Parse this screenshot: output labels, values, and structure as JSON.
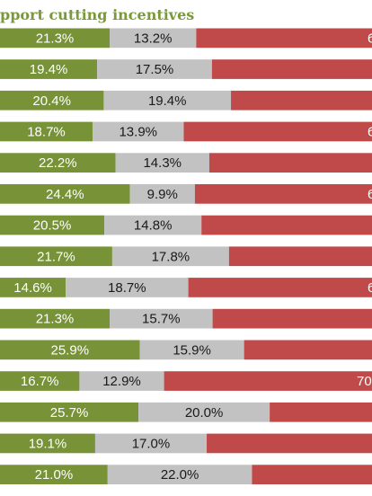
{
  "title": "pport cutting incentives",
  "colors": {
    "support": "#779237",
    "neutral": "#c2c2c2",
    "oppose": "#c04a4a",
    "title": "#7a9a3a"
  },
  "chart_data": {
    "type": "bar",
    "orientation": "horizontal",
    "stacked": true,
    "series": [
      {
        "values": [
          21.3,
          19.4,
          20.4,
          18.7,
          22.2,
          24.4,
          20.5,
          21.7,
          14.6,
          21.3,
          25.9,
          16.7,
          25.7,
          19.1,
          21.0
        ],
        "labels": [
          "21.3%",
          "19.4%",
          "20.4%",
          "18.7%",
          "22.2%",
          "24.4%",
          "20.5%",
          "21.7%",
          "14.6%",
          "21.3%",
          "25.9%",
          "16.7%",
          "25.7%",
          "19.1%",
          "21.0%"
        ]
      },
      {
        "values": [
          13.2,
          17.5,
          19.4,
          13.9,
          14.3,
          9.9,
          14.8,
          17.8,
          18.7,
          15.7,
          15.9,
          12.9,
          20.0,
          17.0,
          22.0
        ],
        "labels": [
          "13.2%",
          "17.5%",
          "19.4%",
          "13.9%",
          "14.3%",
          "9.9%",
          "14.8%",
          "17.8%",
          "18.7%",
          "15.7%",
          "15.9%",
          "12.9%",
          "20.0%",
          "17.0%",
          "22.0%"
        ]
      },
      {
        "labels": [
          "6",
          "",
          "",
          "6",
          "",
          "6",
          "",
          "",
          "6",
          "",
          "",
          "70",
          "",
          "",
          ""
        ]
      }
    ]
  }
}
